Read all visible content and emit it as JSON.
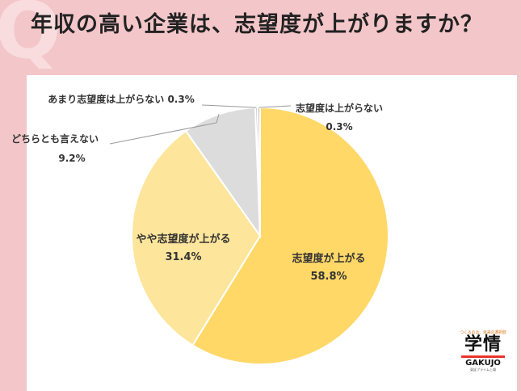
{
  "header": {
    "title": "年収の高い企業は、志望度が上がりますか？",
    "bg_letter": "Q"
  },
  "chart_data": {
    "type": "pie",
    "title": "",
    "slices": [
      {
        "label": "志望度が上がる",
        "value": 58.8,
        "value_text": "58.8%",
        "color": "#ffd868"
      },
      {
        "label": "やや志望度が上がる",
        "value": 31.4,
        "value_text": "31.4%",
        "color": "#fde59b"
      },
      {
        "label": "どちらとも言えない",
        "value": 9.2,
        "value_text": "9.2%",
        "color": "#dcdcdc"
      },
      {
        "label": "あまり志望度は上がらない",
        "value": 0.3,
        "value_text": "0.3%",
        "color": "#c8c8c8"
      },
      {
        "label": "志望度は上がらない",
        "value": 0.3,
        "value_text": "0.3%",
        "color": "#b5b5b5"
      }
    ]
  },
  "logo": {
    "tagline": "つくるのは、未来の選択肢",
    "main": "学情",
    "english": "GAKUJO",
    "sub": "東証プライム上場"
  }
}
